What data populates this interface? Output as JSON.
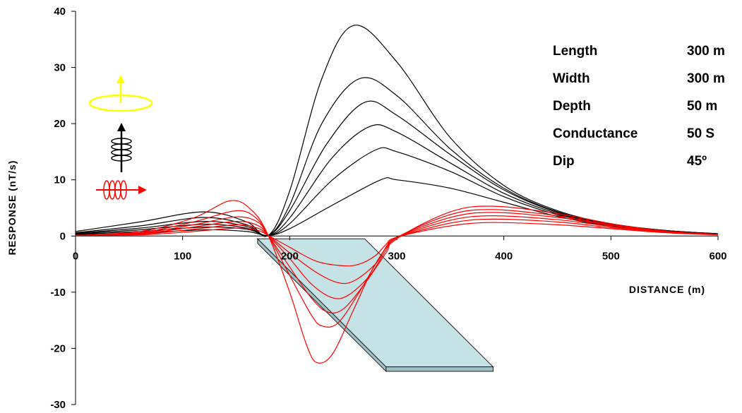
{
  "chart_data": {
    "type": "line",
    "xlabel": "DISTANCE (m)",
    "ylabel": "RESPONSE (nT/s)",
    "xlim": [
      0,
      600
    ],
    "ylim": [
      -30,
      40
    ],
    "xticks": [
      0,
      100,
      200,
      300,
      400,
      500,
      600
    ],
    "yticks": [
      -30,
      -20,
      -10,
      0,
      10,
      20,
      30,
      40
    ],
    "x_tick_labels": [
      "0",
      "100",
      "200",
      "300",
      "400",
      "500",
      "600"
    ],
    "y_tick_labels": [
      "-30",
      "-20",
      "-10",
      "0",
      "10",
      "20",
      "30",
      "40"
    ],
    "grid": false,
    "colors": {
      "vertical_component": "#000000",
      "horizontal_component": "#ff0000",
      "transmitter_loop": "#ffff00",
      "plate": "#c5e3e6"
    },
    "series_groups": [
      {
        "component": "vertical",
        "color": "#000000",
        "curves": [
          {
            "x": [
              0,
              60,
              120,
              160,
              180,
              200,
              230,
              260,
              300,
              350,
              400,
              450,
              500,
              550,
              600
            ],
            "y": [
              0.8,
              2.5,
              4.3,
              2.5,
              0.1,
              8,
              28,
              37.5,
              31,
              17.5,
              9,
              4.5,
              2.2,
              1.0,
              0.4
            ]
          },
          {
            "x": [
              0,
              60,
              120,
              160,
              180,
              200,
              230,
              265,
              300,
              350,
              400,
              450,
              500,
              550,
              600
            ],
            "y": [
              0.6,
              1.8,
              3.3,
              2.0,
              0.1,
              5.5,
              20,
              28,
              25,
              15.5,
              8.5,
              4.3,
              2.1,
              1.0,
              0.4
            ]
          },
          {
            "x": [
              0,
              60,
              120,
              160,
              180,
              200,
              235,
              270,
              300,
              350,
              400,
              450,
              500,
              550,
              600
            ],
            "y": [
              0.5,
              1.4,
              2.6,
              1.7,
              0.1,
              4.5,
              16.5,
              23.8,
              21.5,
              14.5,
              8.2,
              4.2,
              2.0,
              1.0,
              0.4
            ]
          },
          {
            "x": [
              0,
              60,
              120,
              160,
              180,
              200,
              240,
              275,
              300,
              350,
              400,
              450,
              500,
              550,
              600
            ],
            "y": [
              0.4,
              1.1,
              2.1,
              1.4,
              0.1,
              3.2,
              14,
              19.5,
              18.5,
              13,
              7.6,
              4.0,
              1.9,
              0.9,
              0.4
            ]
          },
          {
            "x": [
              0,
              60,
              120,
              160,
              180,
              200,
              240,
              280,
              300,
              350,
              400,
              450,
              500,
              550,
              600
            ],
            "y": [
              0.3,
              0.8,
              1.6,
              1.2,
              0.1,
              2.2,
              10,
              15.3,
              15,
              11.5,
              7.0,
              3.8,
              1.8,
              0.9,
              0.4
            ]
          },
          {
            "x": [
              0,
              60,
              120,
              160,
              180,
              200,
              240,
              285,
              300,
              350,
              400,
              450,
              500,
              550,
              600
            ],
            "y": [
              0.2,
              0.5,
              1.1,
              0.8,
              0.1,
              1.3,
              5.5,
              10,
              10,
              8.5,
              6.0,
              3.5,
              1.7,
              0.8,
              0.3
            ]
          }
        ]
      },
      {
        "component": "horizontal",
        "color": "#ff0000",
        "curves": [
          {
            "x": [
              0,
              60,
              110,
              145,
              165,
              180,
              200,
              215,
              225,
              240,
              260,
              280,
              300,
              350,
              390,
              450,
              500,
              550,
              600
            ],
            "y": [
              0.1,
              0.8,
              3.2,
              6.3,
              4.5,
              0.1,
              -10,
              -19,
              -22.5,
              -21,
              -13,
              -5,
              -0.5,
              4.3,
              5.3,
              4.0,
              2.2,
              0.9,
              0.3
            ]
          },
          {
            "x": [
              0,
              60,
              110,
              150,
              168,
              180,
              200,
              220,
              230,
              245,
              265,
              285,
              300,
              350,
              390,
              450,
              500,
              550,
              600
            ],
            "y": [
              0.1,
              0.6,
              2.5,
              4.5,
              3.3,
              0.1,
              -7,
              -14,
              -16,
              -15.5,
              -10,
              -3.5,
              -0.3,
              3.8,
              4.7,
              3.6,
              2.0,
              0.8,
              0.3
            ]
          },
          {
            "x": [
              0,
              60,
              110,
              150,
              170,
              180,
              200,
              220,
              235,
              250,
              270,
              290,
              300,
              350,
              390,
              450,
              500,
              550,
              600
            ],
            "y": [
              0.1,
              0.5,
              2.0,
              3.4,
              2.5,
              0.1,
              -5.5,
              -11,
              -13.5,
              -13,
              -8.5,
              -3,
              -0.3,
              3.3,
              4.2,
              3.3,
              1.9,
              0.8,
              0.3
            ]
          },
          {
            "x": [
              0,
              60,
              110,
              150,
              170,
              180,
              200,
              220,
              240,
              255,
              275,
              290,
              300,
              350,
              390,
              450,
              500,
              550,
              600
            ],
            "y": [
              0.1,
              0.4,
              1.6,
              2.6,
              1.9,
              0.1,
              -4,
              -8.5,
              -11,
              -10.5,
              -7,
              -2.5,
              -0.3,
              2.8,
              3.6,
              2.9,
              1.7,
              0.7,
              0.3
            ]
          },
          {
            "x": [
              0,
              60,
              110,
              150,
              170,
              180,
              200,
              225,
              245,
              260,
              280,
              290,
              300,
              350,
              390,
              450,
              500,
              550,
              600
            ],
            "y": [
              0.1,
              0.3,
              1.2,
              2.0,
              1.4,
              0.1,
              -3,
              -6.5,
              -8.3,
              -8,
              -5,
              -2,
              -0.3,
              2.3,
              3.0,
              2.5,
              1.5,
              0.7,
              0.3
            ]
          },
          {
            "x": [
              0,
              60,
              110,
              150,
              170,
              180,
              200,
              225,
              250,
              265,
              280,
              290,
              300,
              350,
              390,
              450,
              500,
              550,
              600
            ],
            "y": [
              0.1,
              0.2,
              0.8,
              1.4,
              1.0,
              0.1,
              -2,
              -4.5,
              -5.3,
              -5,
              -3.5,
              -1.5,
              -0.2,
              1.8,
              2.4,
              2.0,
              1.3,
              0.6,
              0.2
            ]
          }
        ]
      }
    ],
    "plate": {
      "surface_x": [
        170,
        270
      ],
      "bottom_x": [
        290,
        390
      ],
      "top_y": -0.5,
      "bottom_y": -23.3,
      "thickness_y": 0.8
    },
    "parameters": [
      {
        "name": "Length",
        "value": "300 m"
      },
      {
        "name": "Width",
        "value": "300 m"
      },
      {
        "name": "Depth",
        "value": "50 m"
      },
      {
        "name": "Conductance",
        "value": "50 S"
      },
      {
        "name": "Dip",
        "value": "45º"
      }
    ],
    "legend_icons": [
      "horizontal-transmitter-loop-icon",
      "vertical-receiver-coil-icon",
      "horizontal-receiver-coil-icon"
    ]
  }
}
